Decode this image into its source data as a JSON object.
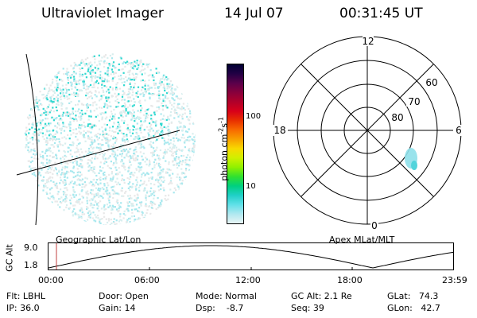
{
  "header": {
    "instrument": "Ultraviolet Imager",
    "date": "14 Jul 07",
    "time": "00:31:45 UT"
  },
  "colorbar": {
    "unit_label": "photon cm",
    "unit_exp1": "-2",
    "unit_mid": "s",
    "unit_exp2": "-1",
    "ticks": [
      "100",
      "10"
    ],
    "colors": [
      "#000033",
      "#220044",
      "#5a004a",
      "#88003c",
      "#b0002a",
      "#d8001a",
      "#e83000",
      "#f86a00",
      "#f8a000",
      "#f8d800",
      "#d0f000",
      "#90f000",
      "#30e030",
      "#00d080",
      "#20d0c8",
      "#60e0e8",
      "#b0e8f0",
      "#e8f4f4"
    ]
  },
  "polar": {
    "mlt_labels": {
      "top": "12",
      "left": "18",
      "right": "6",
      "bottom": "0"
    },
    "lat_labels": [
      "60",
      "70",
      "80"
    ]
  },
  "track": {
    "left_label": "Geographic Lat/Lon",
    "right_label": "Apex  MLat/MLT",
    "axis_title": "GC Alt",
    "y_ticks": [
      "9.0",
      "1.8"
    ],
    "x_ticks": [
      "00:00",
      "06:00",
      "12:00",
      "18:00",
      "23:59"
    ],
    "marker_time": "00:31:45"
  },
  "status": {
    "filter": "Flt: LBHL",
    "ip": "IP: 36.0",
    "door": "Door: Open",
    "gain": "Gain: 14",
    "mode": "Mode: Normal",
    "dsp": "Dsp:    -8.7",
    "gc_alt": "GC Alt: 2.1 Re",
    "seq": "Seq: 39",
    "glat": "GLat:   74.3",
    "glon": "GLon:   42.7"
  }
}
